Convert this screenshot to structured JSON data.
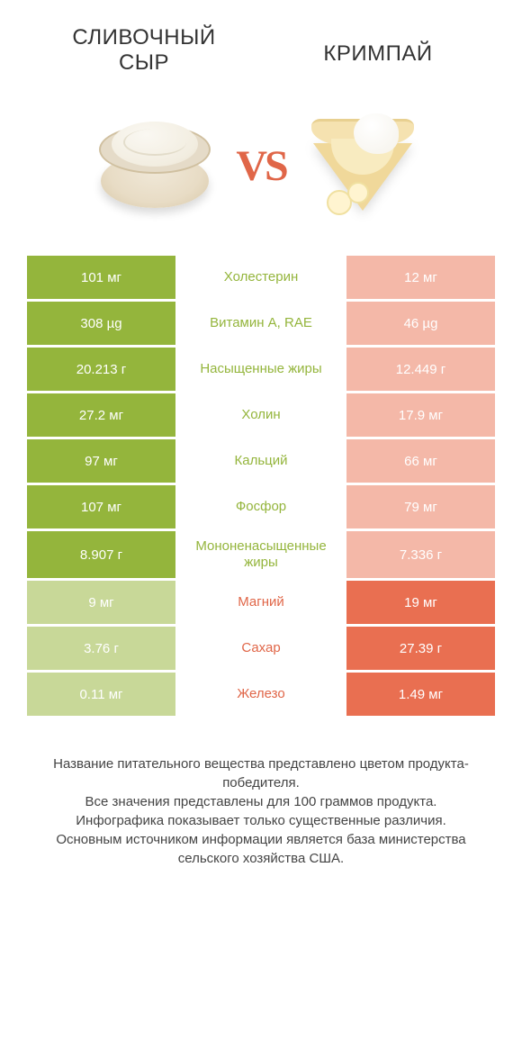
{
  "colors": {
    "left_win": "#94b53c",
    "left_lose": "#c8d898",
    "right_win": "#e96f51",
    "right_lose": "#f4b8a8",
    "label_left": "#94b53c",
    "label_right": "#e06648",
    "title": "#333333",
    "footer": "#444444",
    "background": "#ffffff"
  },
  "fonts": {
    "title_size": 24,
    "value_size": 15,
    "label_size": 15,
    "footer_size": 15,
    "vs_size": 48
  },
  "header": {
    "left_title": "СЛИВОЧНЫЙ СЫР",
    "right_title": "КРИМПАЙ",
    "vs": "VS"
  },
  "rows": [
    {
      "label": "Холестерин",
      "left": "101 мг",
      "right": "12 мг",
      "winner": "left"
    },
    {
      "label": "Витамин A, RAE",
      "left": "308 µg",
      "right": "46 µg",
      "winner": "left"
    },
    {
      "label": "Насыщенные жиры",
      "left": "20.213 г",
      "right": "12.449 г",
      "winner": "left"
    },
    {
      "label": "Холин",
      "left": "27.2 мг",
      "right": "17.9 мг",
      "winner": "left"
    },
    {
      "label": "Кальций",
      "left": "97 мг",
      "right": "66 мг",
      "winner": "left"
    },
    {
      "label": "Фосфор",
      "left": "107 мг",
      "right": "79 мг",
      "winner": "left"
    },
    {
      "label": "Мононенасыщенные жиры",
      "left": "8.907 г",
      "right": "7.336 г",
      "winner": "left"
    },
    {
      "label": "Магний",
      "left": "9 мг",
      "right": "19 мг",
      "winner": "right"
    },
    {
      "label": "Сахар",
      "left": "3.76 г",
      "right": "27.39 г",
      "winner": "right"
    },
    {
      "label": "Железо",
      "left": "0.11 мг",
      "right": "1.49 мг",
      "winner": "right"
    }
  ],
  "footer": {
    "line1": "Название питательного вещества представлено цветом продукта-победителя.",
    "line2": "Все значения представлены для 100 граммов продукта.",
    "line3": "Инфографика показывает только существенные различия.",
    "line4": "Основным источником информации является база министерства сельского хозяйства США."
  }
}
